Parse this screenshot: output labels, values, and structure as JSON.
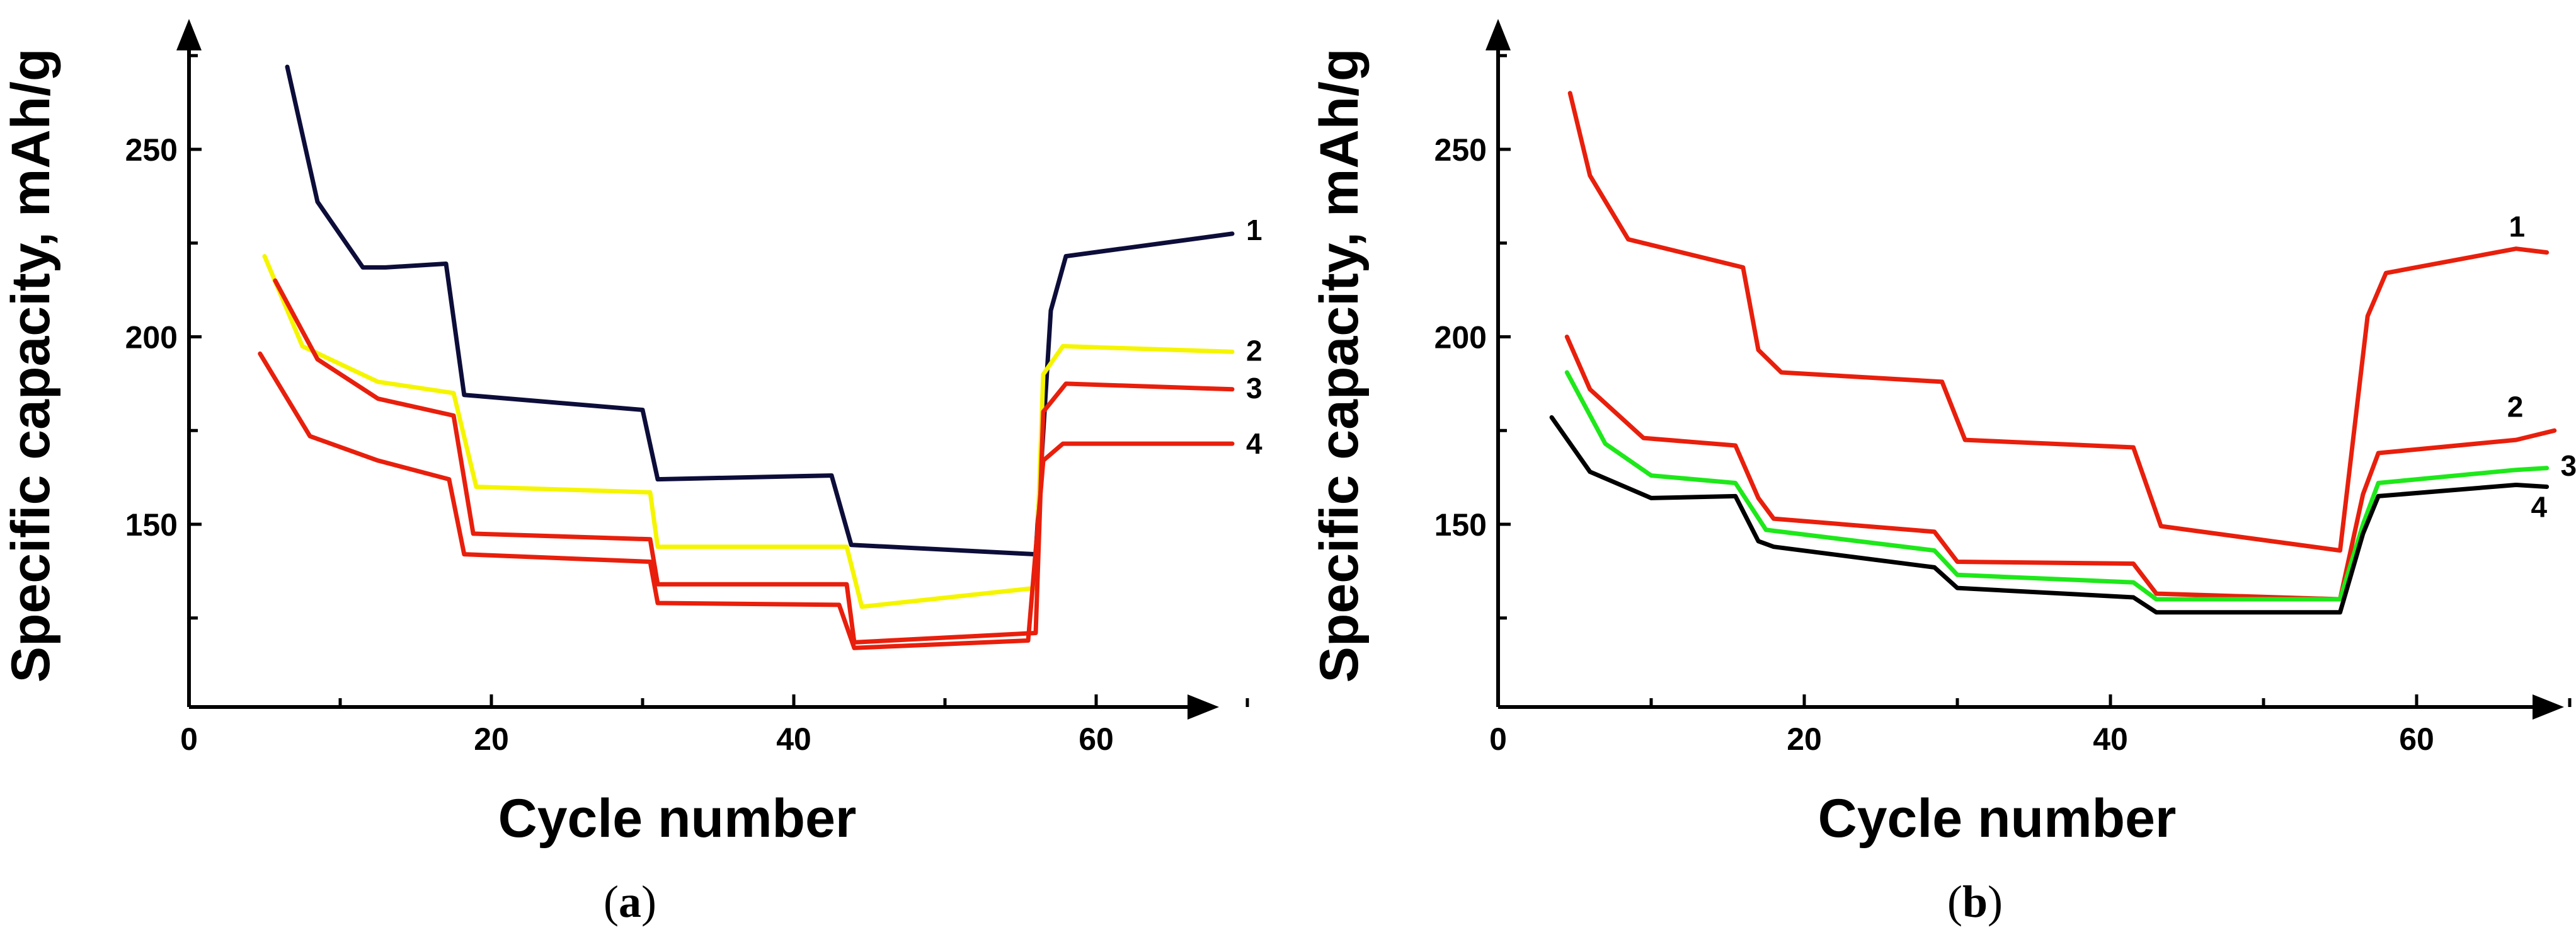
{
  "chart_data": [
    {
      "type": "line",
      "panel_label": "(a)",
      "panel_letter": "a",
      "xlabel": "Cycle number",
      "ylabel": "Specific capacity, mAh/g",
      "xlim": [
        0,
        70
      ],
      "ylim": [
        105,
        280
      ],
      "x_ticks": [
        0,
        20,
        40,
        60
      ],
      "y_ticks": [
        150,
        200,
        250
      ],
      "series": [
        {
          "name": "1",
          "color": "#0d0d3a",
          "points": [
            [
              6.5,
              272
            ],
            [
              8.5,
              236
            ],
            [
              11.5,
              218.5
            ],
            [
              13,
              218.5
            ],
            [
              17,
              219.5
            ],
            [
              18.2,
              184.5
            ],
            [
              30,
              180.5
            ],
            [
              31,
              162
            ],
            [
              42.5,
              163
            ],
            [
              43.8,
              144.5
            ],
            [
              56,
              142
            ],
            [
              57,
              207
            ],
            [
              58,
              221.5
            ],
            [
              69,
              227.5
            ]
          ]
        },
        {
          "name": "2",
          "color": "#f5f500",
          "points": [
            [
              5,
              221.5
            ],
            [
              7.5,
              197.5
            ],
            [
              12.5,
              188
            ],
            [
              17.5,
              185
            ],
            [
              19,
              160
            ],
            [
              30.5,
              158.5
            ],
            [
              31,
              144
            ],
            [
              43.5,
              144
            ],
            [
              44.5,
              128
            ],
            [
              56,
              133
            ],
            [
              56.5,
              190
            ],
            [
              57.8,
              197.5
            ],
            [
              69,
              196
            ]
          ]
        },
        {
          "name": "3",
          "color": "#e81f0c",
          "points": [
            [
              5.7,
              215
            ],
            [
              8.5,
              194
            ],
            [
              12.5,
              183.5
            ],
            [
              17.5,
              179
            ],
            [
              18.8,
              147.5
            ],
            [
              30.5,
              146
            ],
            [
              31,
              134
            ],
            [
              43.5,
              134
            ],
            [
              44,
              118.5
            ],
            [
              56,
              121
            ],
            [
              56.5,
              180
            ],
            [
              58,
              187.5
            ],
            [
              69,
              186
            ]
          ]
        },
        {
          "name": "4",
          "color": "#e81f0c",
          "points": [
            [
              4.7,
              195.5
            ],
            [
              8,
              173.5
            ],
            [
              12.5,
              167
            ],
            [
              17.2,
              162
            ],
            [
              18.2,
              142
            ],
            [
              30.5,
              140
            ],
            [
              31,
              129
            ],
            [
              43,
              128.5
            ],
            [
              44,
              117
            ],
            [
              55.5,
              119
            ],
            [
              56.5,
              167
            ],
            [
              57.8,
              171.5
            ],
            [
              69,
              171.5
            ]
          ]
        }
      ]
    },
    {
      "type": "line",
      "panel_label": "(b)",
      "panel_letter": "b",
      "xlabel": "Cycle number",
      "ylabel": "Specific capacity, mAh/g",
      "xlim": [
        0,
        70
      ],
      "ylim": [
        105,
        280
      ],
      "x_ticks": [
        0,
        20,
        40,
        60
      ],
      "y_ticks": [
        150,
        200,
        250
      ],
      "series": [
        {
          "name": "1",
          "color": "#e81f0c",
          "points": [
            [
              4.7,
              265
            ],
            [
              6,
              243
            ],
            [
              8.5,
              226
            ],
            [
              16,
              218.5
            ],
            [
              17,
              196.5
            ],
            [
              18.5,
              190.5
            ],
            [
              29,
              188
            ],
            [
              30.5,
              172.5
            ],
            [
              41.5,
              170.5
            ],
            [
              43.3,
              149.5
            ],
            [
              55,
              143
            ],
            [
              56.8,
              205.5
            ],
            [
              58,
              217
            ],
            [
              66.5,
              223.5
            ],
            [
              68.5,
              222.5
            ]
          ]
        },
        {
          "name": "2",
          "color": "#e81f0c",
          "points": [
            [
              4.5,
              200
            ],
            [
              6,
              186
            ],
            [
              9.5,
              173
            ],
            [
              15.5,
              171
            ],
            [
              17,
              157
            ],
            [
              18,
              151.5
            ],
            [
              28.5,
              148
            ],
            [
              30,
              140
            ],
            [
              41.5,
              139.5
            ],
            [
              43,
              131.5
            ],
            [
              55,
              130
            ],
            [
              56.5,
              158
            ],
            [
              57.5,
              169
            ],
            [
              66.5,
              172.5
            ],
            [
              69,
              175
            ]
          ]
        },
        {
          "name": "3",
          "color": "#1ee81a",
          "points": [
            [
              4.5,
              190.5
            ],
            [
              7,
              171.5
            ],
            [
              10,
              163
            ],
            [
              15.5,
              161
            ],
            [
              17.5,
              148.5
            ],
            [
              28.5,
              143
            ],
            [
              30,
              136.5
            ],
            [
              41.5,
              134.5
            ],
            [
              43,
              130
            ],
            [
              55,
              130
            ],
            [
              56.5,
              150
            ],
            [
              57.5,
              161
            ],
            [
              66.5,
              164.5
            ],
            [
              68.5,
              165
            ]
          ]
        },
        {
          "name": "4",
          "color": "#000000",
          "points": [
            [
              3.5,
              178.5
            ],
            [
              6,
              164
            ],
            [
              10,
              157
            ],
            [
              15.5,
              157.5
            ],
            [
              17,
              145.5
            ],
            [
              18,
              144
            ],
            [
              28.5,
              138.5
            ],
            [
              30,
              133
            ],
            [
              41.5,
              130.5
            ],
            [
              43,
              126.5
            ],
            [
              55,
              126.5
            ],
            [
              56.5,
              147.5
            ],
            [
              57.5,
              157.5
            ],
            [
              66.5,
              160.5
            ],
            [
              68.5,
              160
            ]
          ]
        }
      ]
    }
  ]
}
